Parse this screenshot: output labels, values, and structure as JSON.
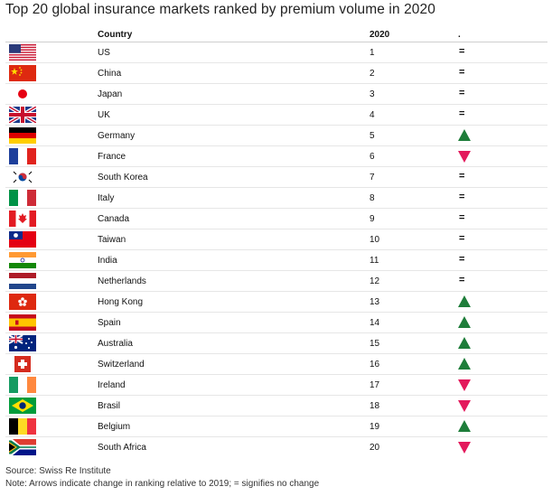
{
  "title": "Top 20 global insurance markets ranked by premium volume in 2020",
  "header": {
    "country": "Country",
    "rank": "2020",
    "change": "."
  },
  "colors": {
    "up": "#1e7d3a",
    "down": "#e31a5c"
  },
  "chart_data": {
    "type": "table",
    "columns": [
      "Country",
      "2020",
      "."
    ],
    "rows": [
      {
        "flag": "us-flag-icon",
        "country": "US",
        "rank": 1,
        "change": "="
      },
      {
        "flag": "china-flag-icon",
        "country": "China",
        "rank": 2,
        "change": "="
      },
      {
        "flag": "japan-flag-icon",
        "country": "Japan",
        "rank": 3,
        "change": "="
      },
      {
        "flag": "uk-flag-icon",
        "country": "UK",
        "rank": 4,
        "change": "="
      },
      {
        "flag": "germany-flag-icon",
        "country": "Germany",
        "rank": 5,
        "change": "up"
      },
      {
        "flag": "france-flag-icon",
        "country": "France",
        "rank": 6,
        "change": "down"
      },
      {
        "flag": "south-korea-flag-icon",
        "country": "South Korea",
        "rank": 7,
        "change": "="
      },
      {
        "flag": "italy-flag-icon",
        "country": "Italy",
        "rank": 8,
        "change": "="
      },
      {
        "flag": "canada-flag-icon",
        "country": "Canada",
        "rank": 9,
        "change": "="
      },
      {
        "flag": "taiwan-flag-icon",
        "country": "Taiwan",
        "rank": 10,
        "change": "="
      },
      {
        "flag": "india-flag-icon",
        "country": "India",
        "rank": 11,
        "change": "="
      },
      {
        "flag": "netherlands-flag-icon",
        "country": "Netherlands",
        "rank": 12,
        "change": "="
      },
      {
        "flag": "hong-kong-flag-icon",
        "country": "Hong Kong",
        "rank": 13,
        "change": "up"
      },
      {
        "flag": "spain-flag-icon",
        "country": "Spain",
        "rank": 14,
        "change": "up"
      },
      {
        "flag": "australia-flag-icon",
        "country": "Australia",
        "rank": 15,
        "change": "up"
      },
      {
        "flag": "switzerland-flag-icon",
        "country": "Switzerland",
        "rank": 16,
        "change": "up"
      },
      {
        "flag": "ireland-flag-icon",
        "country": "Ireland",
        "rank": 17,
        "change": "down"
      },
      {
        "flag": "brazil-flag-icon",
        "country": "Brasil",
        "rank": 18,
        "change": "down"
      },
      {
        "flag": "belgium-flag-icon",
        "country": "Belgium",
        "rank": 19,
        "change": "up"
      },
      {
        "flag": "south-africa-flag-icon",
        "country": "South Africa",
        "rank": 20,
        "change": "down"
      }
    ]
  },
  "footer": {
    "source": "Source: Swiss Re Institute",
    "note": "Note: Arrows indicate change in ranking relative to 2019; = signifies no change"
  }
}
